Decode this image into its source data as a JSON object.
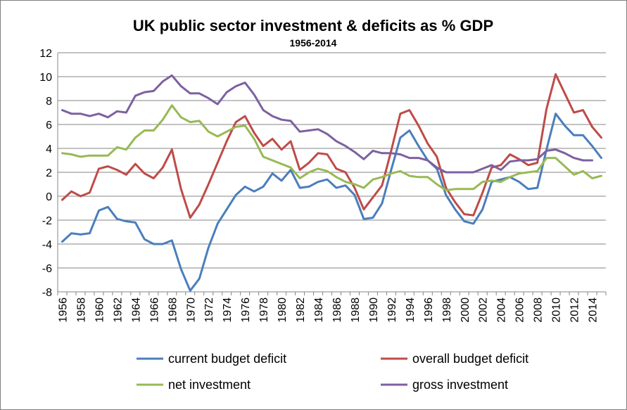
{
  "chart_data": {
    "type": "line",
    "title": "UK public sector investment & deficits as % GDP",
    "subtitle": "1956-2014",
    "xlabel": "",
    "ylabel": "",
    "ylim": [
      -8,
      12
    ],
    "yticks": [
      "12",
      "10",
      "8",
      "6",
      "4",
      "2",
      "0",
      "-2",
      "-4",
      "-6",
      "-8"
    ],
    "ytick_values": [
      12,
      10,
      8,
      6,
      4,
      2,
      0,
      -2,
      -4,
      -6,
      -8
    ],
    "xticks": [
      "1956",
      "1958",
      "1960",
      "1962",
      "1964",
      "1966",
      "1968",
      "1970",
      "1972",
      "1974",
      "1976",
      "1978",
      "1980",
      "1982",
      "1984",
      "1986",
      "1988",
      "1990",
      "1992",
      "1994",
      "1996",
      "1998",
      "2000",
      "2002",
      "2004",
      "2006",
      "2008",
      "2010",
      "2012",
      "2014"
    ],
    "grid": "horizontal",
    "legend_position": "bottom",
    "x": [
      1956,
      1957,
      1958,
      1959,
      1960,
      1961,
      1962,
      1963,
      1964,
      1965,
      1966,
      1967,
      1968,
      1969,
      1970,
      1971,
      1972,
      1973,
      1974,
      1975,
      1976,
      1977,
      1978,
      1979,
      1980,
      1981,
      1982,
      1983,
      1984,
      1985,
      1986,
      1987,
      1988,
      1989,
      1990,
      1991,
      1992,
      1993,
      1994,
      1995,
      1996,
      1997,
      1998,
      1999,
      2000,
      2001,
      2002,
      2003,
      2004,
      2005,
      2006,
      2007,
      2008,
      2009,
      2010,
      2011,
      2012,
      2013,
      2014,
      2015
    ],
    "series": [
      {
        "name": "current budget deficit",
        "color": "#4a7ebb",
        "values": [
          -3.8,
          -3.1,
          -3.2,
          -3.1,
          -1.2,
          -0.9,
          -1.9,
          -2.1,
          -2.2,
          -3.6,
          -4.0,
          -4.0,
          -3.7,
          -6.1,
          -7.9,
          -6.9,
          -4.3,
          -2.3,
          -1.1,
          0.1,
          0.8,
          0.4,
          0.8,
          1.9,
          1.3,
          2.2,
          0.7,
          0.8,
          1.2,
          1.4,
          0.7,
          0.9,
          0.1,
          -1.9,
          -1.8,
          -0.6,
          2.2,
          4.9,
          5.5,
          4.2,
          3.0,
          2.3,
          0.1,
          -1.1,
          -2.1,
          -2.3,
          -1.1,
          1.2,
          1.4,
          1.6,
          1.2,
          0.6,
          0.7,
          3.9,
          6.9,
          5.9,
          5.1,
          5.1,
          4.2,
          3.2
        ]
      },
      {
        "name": "overall budget deficit",
        "color": "#be4b48",
        "values": [
          -0.3,
          0.4,
          0.0,
          0.3,
          2.3,
          2.5,
          2.2,
          1.8,
          2.7,
          1.9,
          1.5,
          2.4,
          3.9,
          0.6,
          -1.8,
          -0.7,
          1.0,
          2.8,
          4.6,
          6.2,
          6.7,
          5.3,
          4.2,
          4.8,
          3.9,
          4.6,
          2.2,
          2.8,
          3.6,
          3.5,
          2.3,
          2.0,
          0.7,
          -1.1,
          -0.1,
          0.9,
          3.8,
          6.9,
          7.2,
          5.9,
          4.4,
          3.3,
          0.7,
          -0.5,
          -1.5,
          -1.6,
          0.3,
          2.4,
          2.6,
          3.5,
          3.1,
          2.6,
          2.8,
          7.3,
          10.2,
          8.6,
          7.0,
          7.2,
          5.8,
          4.9
        ]
      },
      {
        "name": "net investment",
        "color": "#98b954",
        "values": [
          3.6,
          3.5,
          3.3,
          3.4,
          3.4,
          3.4,
          4.1,
          3.9,
          4.9,
          5.5,
          5.5,
          6.4,
          7.6,
          6.6,
          6.2,
          6.3,
          5.4,
          5.0,
          5.4,
          5.8,
          5.9,
          4.8,
          3.3,
          3.0,
          2.7,
          2.4,
          1.5,
          2.0,
          2.3,
          2.1,
          1.6,
          1.2,
          1.0,
          0.7,
          1.4,
          1.6,
          1.9,
          2.1,
          1.7,
          1.6,
          1.6,
          1.0,
          0.5,
          0.6,
          0.6,
          0.6,
          1.2,
          1.3,
          1.2,
          1.6,
          1.9,
          2.0,
          2.1,
          3.2,
          3.2,
          2.5,
          1.8,
          2.1,
          1.5,
          1.7
        ]
      },
      {
        "name": "gross investment",
        "color": "#7d60a0",
        "values": [
          7.2,
          6.9,
          6.9,
          6.7,
          6.9,
          6.6,
          7.1,
          7.0,
          8.4,
          8.7,
          8.8,
          9.6,
          10.1,
          9.2,
          8.6,
          8.6,
          8.2,
          7.7,
          8.7,
          9.2,
          9.5,
          8.5,
          7.2,
          6.7,
          6.4,
          6.3,
          5.4,
          5.5,
          5.6,
          5.2,
          4.6,
          4.2,
          3.7,
          3.1,
          3.8,
          3.6,
          3.6,
          3.5,
          3.2,
          3.2,
          3.0,
          2.4,
          2.0,
          2.0,
          2.0,
          2.0,
          2.3,
          2.6,
          2.2,
          2.9,
          3.0,
          3.0,
          3.1,
          3.8,
          3.9,
          3.6,
          3.2,
          3.0,
          3.0,
          null
        ]
      }
    ]
  }
}
